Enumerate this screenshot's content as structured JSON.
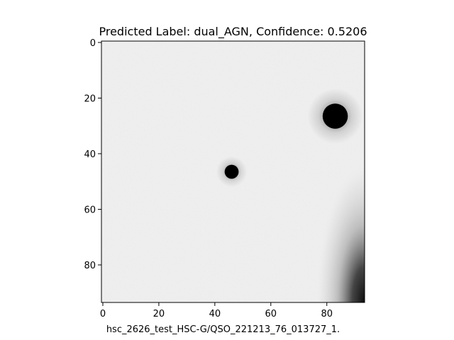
{
  "figure": {
    "title": "Predicted Label: dual_AGN, Confidence: 0.5206",
    "predicted_label": "dual_AGN",
    "confidence": 0.5206,
    "xlabel": "hsc_2626_test_HSC-G/QSO_221213_76_013727_1.",
    "colormap": "gray_r"
  },
  "chart_data": {
    "type": "heatmap",
    "title": "Predicted Label: dual_AGN, Confidence: 0.5206",
    "xlabel": "hsc_2626_test_HSC-G/QSO_221213_76_013727_1.",
    "ylabel": "",
    "image_size": [
      94,
      94
    ],
    "xlim": [
      -0.5,
      93.5
    ],
    "ylim": [
      93.5,
      -0.5
    ],
    "x_ticks": [
      0,
      20,
      40,
      60,
      80
    ],
    "y_ticks": [
      0,
      20,
      40,
      60,
      80
    ],
    "x_tick_labels": [
      "0",
      "20",
      "40",
      "60",
      "80"
    ],
    "y_tick_labels": [
      "0",
      "20",
      "40",
      "60",
      "80"
    ],
    "sources": [
      {
        "name": "bright-source",
        "x": 83,
        "y": 26.5,
        "radius": 4.5
      },
      {
        "name": "compact-source",
        "x": 46,
        "y": 46.5,
        "radius": 2.5
      },
      {
        "name": "extended-emission",
        "x": 90,
        "y": 88,
        "radius": 12
      }
    ]
  }
}
